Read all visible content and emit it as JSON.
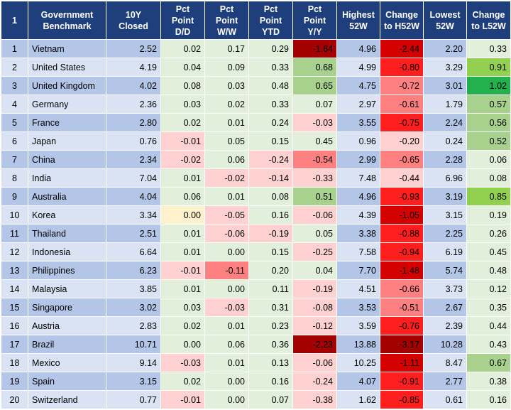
{
  "table": {
    "headers": [
      "1",
      "Government Benchmark",
      "10Y Closed",
      "Pct Point D/D",
      "Pct Point W/W",
      "Pct Point YTD",
      "Pct Point Y/Y",
      "Highest 52W",
      "Change to H52W",
      "Lowest 52W",
      "Change to L52W"
    ],
    "rows": [
      {
        "idx": "1",
        "name": "Vietnam",
        "closed": "2.52",
        "dd": "0.02",
        "ww": "0.17",
        "ytd": "0.29",
        "yy": "-1.64",
        "h52": "4.96",
        "ch52": "-2.44",
        "l52": "2.20",
        "cl52": "0.33",
        "c_dd": "",
        "c_ww": "",
        "c_ytd": "",
        "c_yy": "red5",
        "c_ch52": "red4",
        "c_cl52": ""
      },
      {
        "idx": "2",
        "name": "United States",
        "closed": "4.19",
        "dd": "0.04",
        "ww": "0.09",
        "ytd": "0.33",
        "yy": "0.68",
        "h52": "4.99",
        "ch52": "-0.80",
        "l52": "3.29",
        "cl52": "0.91",
        "c_dd": "",
        "c_ww": "",
        "c_ytd": "",
        "c_yy": "green1",
        "c_ch52": "red3",
        "c_cl52": "green2"
      },
      {
        "idx": "3",
        "name": "United Kingdom",
        "closed": "4.02",
        "dd": "0.08",
        "ww": "0.03",
        "ytd": "0.48",
        "yy": "0.65",
        "h52": "4.75",
        "ch52": "-0.72",
        "l52": "3.01",
        "cl52": "1.02",
        "c_dd": "",
        "c_ww": "",
        "c_ytd": "",
        "c_yy": "green1",
        "c_ch52": "red2",
        "c_cl52": "green3"
      },
      {
        "idx": "4",
        "name": "Germany",
        "closed": "2.36",
        "dd": "0.03",
        "ww": "0.02",
        "ytd": "0.33",
        "yy": "0.07",
        "h52": "2.97",
        "ch52": "-0.61",
        "l52": "1.79",
        "cl52": "0.57",
        "c_dd": "",
        "c_ww": "",
        "c_ytd": "",
        "c_yy": "",
        "c_ch52": "red2",
        "c_cl52": "green1"
      },
      {
        "idx": "5",
        "name": "France",
        "closed": "2.80",
        "dd": "0.02",
        "ww": "0.01",
        "ytd": "0.24",
        "yy": "-0.03",
        "h52": "3.55",
        "ch52": "-0.75",
        "l52": "2.24",
        "cl52": "0.56",
        "c_dd": "",
        "c_ww": "",
        "c_ytd": "",
        "c_yy": "red1",
        "c_ch52": "red3",
        "c_cl52": "green1"
      },
      {
        "idx": "6",
        "name": "Japan",
        "closed": "0.76",
        "dd": "-0.01",
        "ww": "0.05",
        "ytd": "0.15",
        "yy": "0.45",
        "h52": "0.96",
        "ch52": "-0.20",
        "l52": "0.24",
        "cl52": "0.52",
        "c_dd": "red1",
        "c_ww": "",
        "c_ytd": "",
        "c_yy": "",
        "c_ch52": "red1",
        "c_cl52": "green1"
      },
      {
        "idx": "7",
        "name": "China",
        "closed": "2.34",
        "dd": "-0.02",
        "ww": "0.06",
        "ytd": "-0.24",
        "yy": "-0.54",
        "h52": "2.99",
        "ch52": "-0.65",
        "l52": "2.28",
        "cl52": "0.06",
        "c_dd": "red1",
        "c_ww": "",
        "c_ytd": "red1",
        "c_yy": "red2",
        "c_ch52": "red2",
        "c_cl52": ""
      },
      {
        "idx": "8",
        "name": "India",
        "closed": "7.04",
        "dd": "0.01",
        "ww": "-0.02",
        "ytd": "-0.14",
        "yy": "-0.33",
        "h52": "7.48",
        "ch52": "-0.44",
        "l52": "6.96",
        "cl52": "0.08",
        "c_dd": "",
        "c_ww": "red1",
        "c_ytd": "red1",
        "c_yy": "red1",
        "c_ch52": "red1",
        "c_cl52": ""
      },
      {
        "idx": "9",
        "name": "Australia",
        "closed": "4.04",
        "dd": "0.06",
        "ww": "0.01",
        "ytd": "0.08",
        "yy": "0.51",
        "h52": "4.96",
        "ch52": "-0.93",
        "l52": "3.19",
        "cl52": "0.85",
        "c_dd": "",
        "c_ww": "",
        "c_ytd": "",
        "c_yy": "green1",
        "c_ch52": "red3",
        "c_cl52": "green2"
      },
      {
        "idx": "10",
        "name": "Korea",
        "closed": "3.34",
        "dd": "0.00",
        "ww": "-0.05",
        "ytd": "0.16",
        "yy": "-0.06",
        "h52": "4.39",
        "ch52": "-1.05",
        "l52": "3.15",
        "cl52": "0.19",
        "c_dd": "yellow",
        "c_ww": "red1",
        "c_ytd": "",
        "c_yy": "red1",
        "c_ch52": "red4",
        "c_cl52": ""
      },
      {
        "idx": "11",
        "name": "Thailand",
        "closed": "2.51",
        "dd": "0.01",
        "ww": "-0.06",
        "ytd": "-0.19",
        "yy": "0.05",
        "h52": "3.38",
        "ch52": "-0.88",
        "l52": "2.25",
        "cl52": "0.26",
        "c_dd": "",
        "c_ww": "red1",
        "c_ytd": "red1",
        "c_yy": "",
        "c_ch52": "red3",
        "c_cl52": ""
      },
      {
        "idx": "12",
        "name": "Indonesia",
        "closed": "6.64",
        "dd": "0.01",
        "ww": "0.00",
        "ytd": "0.15",
        "yy": "-0.25",
        "h52": "7.58",
        "ch52": "-0.94",
        "l52": "6.19",
        "cl52": "0.45",
        "c_dd": "",
        "c_ww": "",
        "c_ytd": "",
        "c_yy": "red1",
        "c_ch52": "red3",
        "c_cl52": ""
      },
      {
        "idx": "13",
        "name": "Philippines",
        "closed": "6.23",
        "dd": "-0.01",
        "ww": "-0.11",
        "ytd": "0.20",
        "yy": "0.04",
        "h52": "7.70",
        "ch52": "-1.48",
        "l52": "5.74",
        "cl52": "0.48",
        "c_dd": "red1",
        "c_ww": "red2",
        "c_ytd": "",
        "c_yy": "",
        "c_ch52": "red4",
        "c_cl52": ""
      },
      {
        "idx": "14",
        "name": "Malaysia",
        "closed": "3.85",
        "dd": "0.01",
        "ww": "0.00",
        "ytd": "0.11",
        "yy": "-0.19",
        "h52": "4.51",
        "ch52": "-0.66",
        "l52": "3.73",
        "cl52": "0.12",
        "c_dd": "",
        "c_ww": "",
        "c_ytd": "",
        "c_yy": "red1",
        "c_ch52": "red2",
        "c_cl52": ""
      },
      {
        "idx": "15",
        "name": "Singapore",
        "closed": "3.02",
        "dd": "0.03",
        "ww": "-0.03",
        "ytd": "0.31",
        "yy": "-0.08",
        "h52": "3.53",
        "ch52": "-0.51",
        "l52": "2.67",
        "cl52": "0.35",
        "c_dd": "",
        "c_ww": "red1",
        "c_ytd": "",
        "c_yy": "red1",
        "c_ch52": "red2",
        "c_cl52": ""
      },
      {
        "idx": "16",
        "name": "Austria",
        "closed": "2.83",
        "dd": "0.02",
        "ww": "0.01",
        "ytd": "0.23",
        "yy": "-0.12",
        "h52": "3.59",
        "ch52": "-0.76",
        "l52": "2.39",
        "cl52": "0.44",
        "c_dd": "",
        "c_ww": "",
        "c_ytd": "",
        "c_yy": "red1",
        "c_ch52": "red3",
        "c_cl52": ""
      },
      {
        "idx": "17",
        "name": "Brazil",
        "closed": "10.71",
        "dd": "0.00",
        "ww": "0.06",
        "ytd": "0.36",
        "yy": "-2.23",
        "h52": "13.88",
        "ch52": "-3.17",
        "l52": "10.28",
        "cl52": "0.43",
        "c_dd": "",
        "c_ww": "",
        "c_ytd": "",
        "c_yy": "red5",
        "c_ch52": "red5",
        "c_cl52": ""
      },
      {
        "idx": "18",
        "name": "Mexico",
        "closed": "9.14",
        "dd": "-0.03",
        "ww": "0.01",
        "ytd": "0.13",
        "yy": "-0.06",
        "h52": "10.25",
        "ch52": "-1.11",
        "l52": "8.47",
        "cl52": "0.67",
        "c_dd": "red1",
        "c_ww": "",
        "c_ytd": "",
        "c_yy": "red1",
        "c_ch52": "red4",
        "c_cl52": "green1"
      },
      {
        "idx": "19",
        "name": "Spain",
        "closed": "3.15",
        "dd": "0.02",
        "ww": "0.00",
        "ytd": "0.16",
        "yy": "-0.24",
        "h52": "4.07",
        "ch52": "-0.91",
        "l52": "2.77",
        "cl52": "0.38",
        "c_dd": "",
        "c_ww": "",
        "c_ytd": "",
        "c_yy": "red1",
        "c_ch52": "red3",
        "c_cl52": ""
      },
      {
        "idx": "20",
        "name": "Switzerland",
        "closed": "0.77",
        "dd": "-0.01",
        "ww": "0.00",
        "ytd": "0.07",
        "yy": "-0.38",
        "h52": "1.62",
        "ch52": "-0.85",
        "l52": "0.61",
        "cl52": "0.16",
        "c_dd": "red1",
        "c_ww": "",
        "c_ytd": "",
        "c_yy": "red1",
        "c_ch52": "red3",
        "c_cl52": ""
      }
    ]
  }
}
